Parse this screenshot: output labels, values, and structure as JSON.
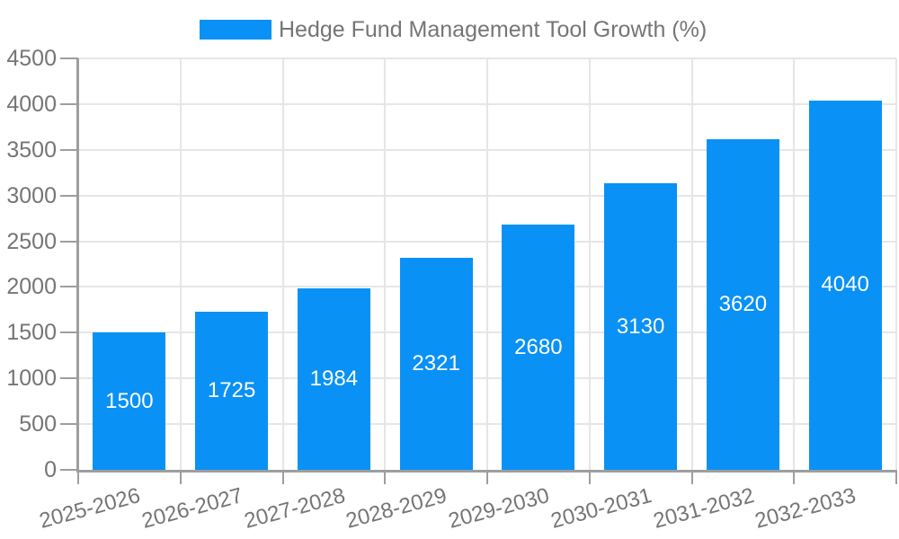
{
  "legend": {
    "label": "Hedge Fund Management Tool Growth (%)"
  },
  "colors": {
    "bar": "#0991F5",
    "axis_text": "#757575",
    "axis_line": "#9e9e9e",
    "gridline": "#e6e6e6",
    "bar_label": "#ffffff",
    "background": "#ffffff"
  },
  "chart_data": {
    "type": "bar",
    "title": "Hedge Fund Management Tool Growth (%)",
    "categories": [
      "2025-2026",
      "2026-2027",
      "2027-2028",
      "2028-2029",
      "2029-2030",
      "2030-2031",
      "2031-2032",
      "2032-2033"
    ],
    "values": [
      1500,
      1725,
      1984,
      2321,
      2680,
      3130,
      3620,
      4040
    ],
    "bar_value_labels": [
      "1500",
      "1725",
      "1984",
      "2321",
      "2680",
      "3130",
      "3620",
      "4040"
    ],
    "xlabel": "",
    "ylabel": "",
    "ylim": [
      0,
      4500
    ],
    "yticks": [
      0,
      500,
      1000,
      1500,
      2000,
      2500,
      3000,
      3500,
      4000,
      4500
    ],
    "grid": true,
    "legend_position": "top",
    "x_label_rotation_deg": -15
  }
}
